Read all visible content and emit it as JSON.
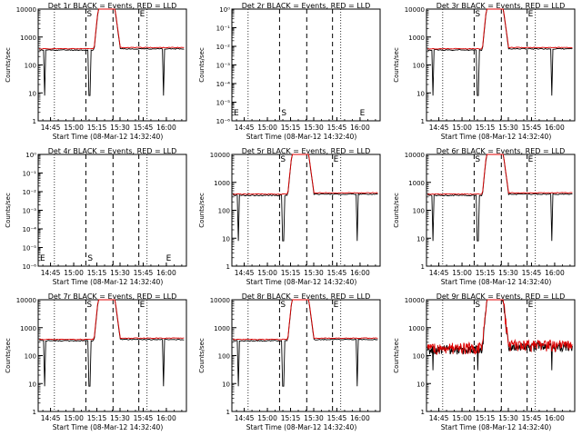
{
  "chart_data": [
    {
      "id": "det1r",
      "type": "line",
      "title": "Det 1r BLACK = Events, RED = LLD",
      "has_data": true,
      "noisy": false,
      "xlabel": "Start Time (08-Mar-12 14:32:40)",
      "ylabel": "Counts/sec",
      "xticks": [
        "14:45",
        "15:00",
        "15:15",
        "15:30",
        "15:45",
        "16:00"
      ],
      "yticks": [
        "1",
        "10",
        "100",
        "1000",
        "10000"
      ],
      "ylim": [
        1,
        10000
      ],
      "yscale": "log",
      "markers": [
        "S",
        "E"
      ],
      "level_pre": 380,
      "level_post": 420,
      "series": [
        {
          "name": "BLACK",
          "color": "#000000"
        },
        {
          "name": "RED",
          "color": "#dd0000"
        }
      ]
    },
    {
      "id": "det2r",
      "type": "line",
      "title": "Det 2r BLACK = Events, RED = LLD",
      "has_data": false,
      "xlabel": "Start Time (08-Mar-12 14:32:40)",
      "ylabel": "Counts/sec",
      "xticks": [
        "14:45",
        "15:00",
        "15:15",
        "15:30",
        "15:45",
        "16:00"
      ],
      "yticks": [
        "10⁰",
        "10⁻¹",
        "10⁻²",
        "10⁻³",
        "10⁻⁴",
        "10⁻⁵",
        "10⁻⁶"
      ],
      "ylim": [
        1e-06,
        1
      ],
      "yscale": "log",
      "markers": [
        "E",
        "S",
        "E"
      ]
    },
    {
      "id": "det3r",
      "type": "line",
      "title": "Det 3r BLACK = Events, RED = LLD",
      "has_data": true,
      "noisy": false,
      "xlabel": "Start Time (08-Mar-12 14:32:40)",
      "ylabel": "Counts/sec",
      "xticks": [
        "14:45",
        "15:00",
        "15:15",
        "15:30",
        "15:45",
        "16:00"
      ],
      "yticks": [
        "1",
        "10",
        "100",
        "1000",
        "10000"
      ],
      "ylim": [
        1,
        10000
      ],
      "yscale": "log",
      "markers": [
        "S",
        "E"
      ],
      "level_pre": 380,
      "level_post": 420
    },
    {
      "id": "det4r",
      "type": "line",
      "title": "Det 4r BLACK = Events, RED = LLD",
      "has_data": false,
      "xlabel": "Start Time (08-Mar-12 14:32:40)",
      "ylabel": "Counts/sec",
      "xticks": [
        "14:45",
        "15:00",
        "15:15",
        "15:30",
        "15:45",
        "16:00"
      ],
      "yticks": [
        "10⁰",
        "10⁻¹",
        "10⁻²",
        "10⁻³",
        "10⁻⁴",
        "10⁻⁵",
        "10⁻⁶"
      ],
      "ylim": [
        1e-06,
        1
      ],
      "yscale": "log",
      "markers": [
        "E",
        "S",
        "E"
      ]
    },
    {
      "id": "det5r",
      "type": "line",
      "title": "Det 5r BLACK = Events, RED = LLD",
      "has_data": true,
      "noisy": false,
      "xlabel": "Start Time (08-Mar-12 14:32:40)",
      "ylabel": "Counts/sec",
      "xticks": [
        "14:45",
        "15:00",
        "15:15",
        "15:30",
        "15:45",
        "16:00"
      ],
      "yticks": [
        "1",
        "10",
        "100",
        "1000",
        "10000"
      ],
      "ylim": [
        1,
        10000
      ],
      "yscale": "log",
      "markers": [
        "S",
        "E"
      ],
      "level_pre": 380,
      "level_post": 420
    },
    {
      "id": "det6r",
      "type": "line",
      "title": "Det 6r BLACK = Events, RED = LLD",
      "has_data": true,
      "noisy": false,
      "xlabel": "Start Time (08-Mar-12 14:32:40)",
      "ylabel": "Counts/sec",
      "xticks": [
        "14:45",
        "15:00",
        "15:15",
        "15:30",
        "15:45",
        "16:00"
      ],
      "yticks": [
        "1",
        "10",
        "100",
        "1000",
        "10000"
      ],
      "ylim": [
        1,
        10000
      ],
      "yscale": "log",
      "markers": [
        "S",
        "E"
      ],
      "level_pre": 380,
      "level_post": 420
    },
    {
      "id": "det7r",
      "type": "line",
      "title": "Det 7r BLACK = Events, RED = LLD",
      "has_data": true,
      "noisy": false,
      "xlabel": "Start Time (08-Mar-12 14:32:40)",
      "ylabel": "Counts/sec",
      "xticks": [
        "14:45",
        "15:00",
        "15:15",
        "15:30",
        "15:45",
        "16:00"
      ],
      "yticks": [
        "1",
        "10",
        "100",
        "1000",
        "10000"
      ],
      "ylim": [
        1,
        10000
      ],
      "yscale": "log",
      "markers": [
        "S",
        "E"
      ],
      "level_pre": 380,
      "level_post": 420
    },
    {
      "id": "det8r",
      "type": "line",
      "title": "Det 8r BLACK = Events, RED = LLD",
      "has_data": true,
      "noisy": false,
      "xlabel": "Start Time (08-Mar-12 14:32:40)",
      "ylabel": "Counts/sec",
      "xticks": [
        "14:45",
        "15:00",
        "15:15",
        "15:30",
        "15:45",
        "16:00"
      ],
      "yticks": [
        "1",
        "10",
        "100",
        "1000",
        "10000"
      ],
      "ylim": [
        1,
        10000
      ],
      "yscale": "log",
      "markers": [
        "S",
        "E"
      ],
      "level_pre": 380,
      "level_post": 420
    },
    {
      "id": "det9r",
      "type": "line",
      "title": "Det 9r BLACK = Events, RED = LLD",
      "has_data": true,
      "noisy": true,
      "xlabel": "Start Time (08-Mar-12 14:32:40)",
      "ylabel": "Counts/sec",
      "xticks": [
        "14:45",
        "15:00",
        "15:15",
        "15:30",
        "15:45",
        "16:00"
      ],
      "yticks": [
        "1",
        "10",
        "100",
        "1000",
        "10000"
      ],
      "ylim": [
        1,
        10000
      ],
      "yscale": "log",
      "markers": [
        "S",
        "E"
      ],
      "level_pre": 200,
      "level_post": 250
    }
  ],
  "colors": {
    "black_series": "#000000",
    "red_series": "#dd0000",
    "axes": "#000000"
  }
}
